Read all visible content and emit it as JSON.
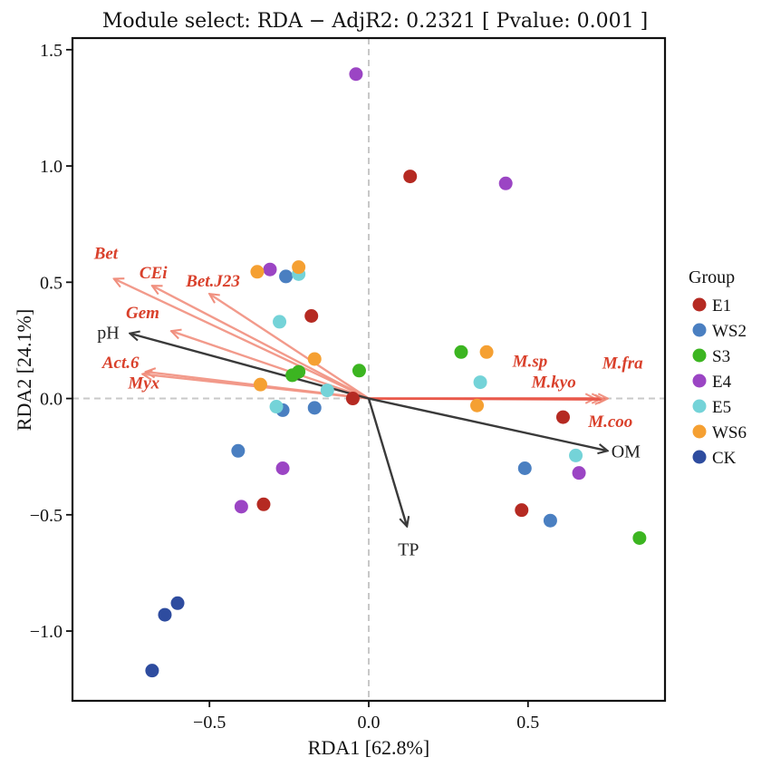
{
  "chart_data": {
    "type": "scatter",
    "title": "Module select: RDA  −  AdjR2: 0.2321 [ Pvalue: 0.001 ]",
    "xlabel": "RDA1 [62.8%]",
    "ylabel": "RDA2 [24.1%]",
    "xlim": [
      -0.93,
      0.93
    ],
    "ylim": [
      -1.3,
      1.55
    ],
    "xticks": [
      -0.5,
      0.0,
      0.5
    ],
    "xtick_labels": [
      "−0.5",
      "0.0",
      "0.5"
    ],
    "yticks": [
      -1.0,
      -0.5,
      0.0,
      0.5,
      1.0,
      1.5
    ],
    "ytick_labels": [
      "−1.0",
      "−0.5",
      "0.0",
      "0.5",
      "1.0",
      "1.5"
    ],
    "reference_lines": {
      "x": 0,
      "y": 0,
      "style": "dashed",
      "color": "#c8c8c8"
    },
    "legend": {
      "title": "Group",
      "position": "right",
      "entries": [
        {
          "name": "E1",
          "color": "#b52a22"
        },
        {
          "name": "WS2",
          "color": "#4a7fc1"
        },
        {
          "name": "S3",
          "color": "#3cb521"
        },
        {
          "name": "E4",
          "color": "#9b45c4"
        },
        {
          "name": "E5",
          "color": "#74d3d8"
        },
        {
          "name": "WS6",
          "color": "#f5a032"
        },
        {
          "name": "CK",
          "color": "#2e4c9f"
        }
      ]
    },
    "series": [
      {
        "name": "E1",
        "color": "#b52a22",
        "points": [
          [
            0.13,
            0.955
          ],
          [
            -0.18,
            0.355
          ],
          [
            -0.05,
            0.0
          ],
          [
            0.61,
            -0.08
          ],
          [
            0.48,
            -0.48
          ],
          [
            -0.33,
            -0.455
          ]
        ]
      },
      {
        "name": "WS2",
        "color": "#4a7fc1",
        "points": [
          [
            -0.26,
            0.525
          ],
          [
            -0.27,
            -0.05
          ],
          [
            -0.17,
            -0.04
          ],
          [
            0.49,
            -0.3
          ],
          [
            0.57,
            -0.525
          ],
          [
            -0.41,
            -0.225
          ]
        ]
      },
      {
        "name": "S3",
        "color": "#3cb521",
        "points": [
          [
            -0.03,
            0.12
          ],
          [
            -0.24,
            0.1
          ],
          [
            -0.22,
            0.115
          ],
          [
            0.29,
            0.2
          ],
          [
            0.85,
            -0.6
          ]
        ]
      },
      {
        "name": "E4",
        "color": "#9b45c4",
        "points": [
          [
            -0.04,
            1.395
          ],
          [
            0.43,
            0.925
          ],
          [
            -0.31,
            0.555
          ],
          [
            0.66,
            -0.32
          ],
          [
            -0.27,
            -0.3
          ],
          [
            -0.4,
            -0.465
          ]
        ]
      },
      {
        "name": "E5",
        "color": "#74d3d8",
        "points": [
          [
            -0.22,
            0.535
          ],
          [
            -0.28,
            0.33
          ],
          [
            -0.13,
            0.035
          ],
          [
            0.35,
            0.07
          ],
          [
            -0.29,
            -0.035
          ],
          [
            0.65,
            -0.245
          ]
        ]
      },
      {
        "name": "WS6",
        "color": "#f5a032",
        "points": [
          [
            -0.35,
            0.545
          ],
          [
            -0.22,
            0.565
          ],
          [
            -0.17,
            0.17
          ],
          [
            0.37,
            0.2
          ],
          [
            -0.34,
            0.06
          ],
          [
            0.34,
            -0.03
          ]
        ]
      },
      {
        "name": "CK",
        "color": "#2e4c9f",
        "points": [
          [
            -0.6,
            -0.88
          ],
          [
            -0.64,
            -0.93
          ],
          [
            -0.68,
            -1.17
          ]
        ]
      }
    ],
    "env_arrows": [
      {
        "name": "pH",
        "x": -0.75,
        "y": 0.28
      },
      {
        "name": "OM",
        "x": 0.75,
        "y": -0.225
      },
      {
        "name": "TP",
        "x": 0.12,
        "y": -0.55
      }
    ],
    "species_arrows": [
      {
        "name": "Bet",
        "x": -0.8,
        "y": 0.515
      },
      {
        "name": "CEi",
        "x": -0.68,
        "y": 0.485
      },
      {
        "name": "Bet.J23",
        "x": -0.5,
        "y": 0.45
      },
      {
        "name": "Gem",
        "x": -0.62,
        "y": 0.29
      },
      {
        "name": "Act.6",
        "x": -0.7,
        "y": 0.115
      },
      {
        "name": "Myx",
        "x": -0.71,
        "y": 0.105
      },
      {
        "name": "M.sp",
        "x": 0.73,
        "y": 0.0
      },
      {
        "name": "M.kyo",
        "x": 0.71,
        "y": 0.0
      },
      {
        "name": "M.fra",
        "x": 0.75,
        "y": 0.0
      },
      {
        "name": "M.coo",
        "x": 0.74,
        "y": -0.005
      }
    ]
  }
}
